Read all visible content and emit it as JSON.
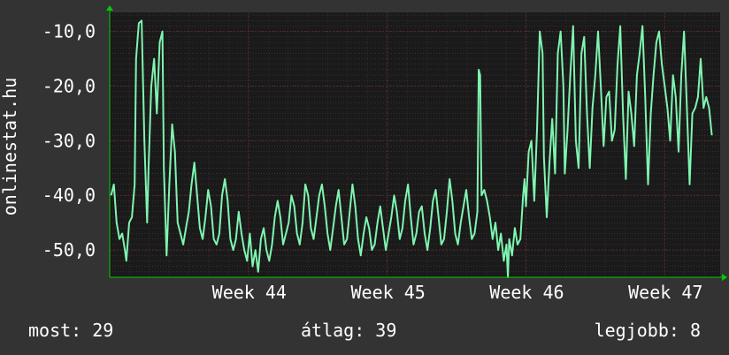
{
  "chart_data": {
    "type": "line",
    "ylabel": "onlinestat.hu",
    "y_tick_labels": [
      "-10,0",
      "-20,0",
      "-30,0",
      "-40,0",
      "-50,0"
    ],
    "y_ticks": [
      -10,
      -20,
      -30,
      -40,
      -50
    ],
    "ylim": [
      -55,
      -6.5
    ],
    "x_tick_labels": [
      "Week 44",
      "Week 45",
      "Week 46",
      "Week 47"
    ],
    "x_ticks": [
      44,
      45,
      46,
      47
    ],
    "xlim": [
      43.0,
      47.4
    ],
    "grid": true,
    "colors": {
      "line": "#7ff5b0",
      "background": "#333333",
      "plot": "#1a1a1a",
      "grid": "#4a4a4a",
      "grid_minor": "#5a2a2a",
      "axis": "#00cc00"
    },
    "series": [
      {
        "points": [
          [
            43.01,
            -40
          ],
          [
            43.03,
            -38
          ],
          [
            43.05,
            -45
          ],
          [
            43.07,
            -48
          ],
          [
            43.09,
            -47
          ],
          [
            43.11,
            -50
          ],
          [
            43.12,
            -52
          ],
          [
            43.14,
            -45
          ],
          [
            43.16,
            -44
          ],
          [
            43.18,
            -38
          ],
          [
            43.19,
            -15
          ],
          [
            43.21,
            -8.5
          ],
          [
            43.23,
            -8
          ],
          [
            43.25,
            -30
          ],
          [
            43.27,
            -45
          ],
          [
            43.28,
            -35
          ],
          [
            43.3,
            -20
          ],
          [
            43.32,
            -15
          ],
          [
            43.34,
            -25
          ],
          [
            43.36,
            -12
          ],
          [
            43.38,
            -10
          ],
          [
            43.39,
            -35
          ],
          [
            43.41,
            -51
          ],
          [
            43.43,
            -38
          ],
          [
            43.45,
            -27
          ],
          [
            43.47,
            -32
          ],
          [
            43.49,
            -45
          ],
          [
            43.51,
            -47
          ],
          [
            43.53,
            -49
          ],
          [
            43.55,
            -46
          ],
          [
            43.57,
            -43
          ],
          [
            43.59,
            -38
          ],
          [
            43.61,
            -34
          ],
          [
            43.63,
            -40
          ],
          [
            43.65,
            -46
          ],
          [
            43.67,
            -48
          ],
          [
            43.69,
            -44
          ],
          [
            43.71,
            -39
          ],
          [
            43.73,
            -42
          ],
          [
            43.75,
            -48
          ],
          [
            43.77,
            -49
          ],
          [
            43.79,
            -47
          ],
          [
            43.81,
            -40
          ],
          [
            43.83,
            -37
          ],
          [
            43.85,
            -41
          ],
          [
            43.87,
            -48
          ],
          [
            43.89,
            -50
          ],
          [
            43.91,
            -48
          ],
          [
            43.93,
            -43
          ],
          [
            43.95,
            -47
          ],
          [
            43.97,
            -50
          ],
          [
            43.99,
            -52
          ],
          [
            44.01,
            -47
          ],
          [
            44.03,
            -53
          ],
          [
            44.05,
            -50
          ],
          [
            44.07,
            -54
          ],
          [
            44.09,
            -48
          ],
          [
            44.11,
            -46
          ],
          [
            44.13,
            -50
          ],
          [
            44.15,
            -52
          ],
          [
            44.17,
            -49
          ],
          [
            44.19,
            -44
          ],
          [
            44.21,
            -41
          ],
          [
            44.23,
            -44
          ],
          [
            44.25,
            -49
          ],
          [
            44.27,
            -47
          ],
          [
            44.29,
            -45
          ],
          [
            44.31,
            -40
          ],
          [
            44.33,
            -42
          ],
          [
            44.35,
            -47
          ],
          [
            44.37,
            -49
          ],
          [
            44.39,
            -45
          ],
          [
            44.41,
            -38
          ],
          [
            44.43,
            -40
          ],
          [
            44.45,
            -46
          ],
          [
            44.47,
            -48
          ],
          [
            44.49,
            -44
          ],
          [
            44.51,
            -40
          ],
          [
            44.53,
            -38
          ],
          [
            44.55,
            -42
          ],
          [
            44.57,
            -47
          ],
          [
            44.59,
            -50
          ],
          [
            44.61,
            -46
          ],
          [
            44.63,
            -42
          ],
          [
            44.65,
            -39
          ],
          [
            44.67,
            -44
          ],
          [
            44.69,
            -49
          ],
          [
            44.71,
            -48
          ],
          [
            44.73,
            -43
          ],
          [
            44.75,
            -38
          ],
          [
            44.77,
            -42
          ],
          [
            44.79,
            -48
          ],
          [
            44.81,
            -51
          ],
          [
            44.83,
            -47
          ],
          [
            44.85,
            -44
          ],
          [
            44.87,
            -46
          ],
          [
            44.89,
            -50
          ],
          [
            44.91,
            -49
          ],
          [
            44.93,
            -45
          ],
          [
            44.95,
            -42
          ],
          [
            44.97,
            -46
          ],
          [
            44.99,
            -50
          ],
          [
            45.01,
            -47
          ],
          [
            45.03,
            -44
          ],
          [
            45.05,
            -40
          ],
          [
            45.07,
            -43
          ],
          [
            45.09,
            -48
          ],
          [
            45.11,
            -46
          ],
          [
            45.13,
            -41
          ],
          [
            45.15,
            -38
          ],
          [
            45.17,
            -44
          ],
          [
            45.19,
            -49
          ],
          [
            45.21,
            -47
          ],
          [
            45.23,
            -43
          ],
          [
            45.25,
            -42
          ],
          [
            45.27,
            -47
          ],
          [
            45.29,
            -50
          ],
          [
            45.31,
            -46
          ],
          [
            45.33,
            -41
          ],
          [
            45.35,
            -39
          ],
          [
            45.37,
            -44
          ],
          [
            45.39,
            -49
          ],
          [
            45.41,
            -48
          ],
          [
            45.43,
            -43
          ],
          [
            45.45,
            -37
          ],
          [
            45.47,
            -41
          ],
          [
            45.49,
            -47
          ],
          [
            45.51,
            -49
          ],
          [
            45.53,
            -45
          ],
          [
            45.55,
            -42
          ],
          [
            45.57,
            -39
          ],
          [
            45.59,
            -44
          ],
          [
            45.61,
            -48
          ],
          [
            45.63,
            -47
          ],
          [
            45.65,
            -43
          ],
          [
            45.66,
            -17
          ],
          [
            45.67,
            -18
          ],
          [
            45.68,
            -40
          ],
          [
            45.7,
            -39
          ],
          [
            45.72,
            -41
          ],
          [
            45.74,
            -44
          ],
          [
            45.76,
            -48
          ],
          [
            45.78,
            -45
          ],
          [
            45.8,
            -50
          ],
          [
            45.82,
            -47
          ],
          [
            45.84,
            -52
          ],
          [
            45.86,
            -49
          ],
          [
            45.87,
            -55
          ],
          [
            45.88,
            -48
          ],
          [
            45.9,
            -51
          ],
          [
            45.92,
            -46
          ],
          [
            45.94,
            -49
          ],
          [
            45.96,
            -48
          ],
          [
            45.98,
            -40
          ],
          [
            45.99,
            -37
          ],
          [
            46.0,
            -42
          ],
          [
            46.02,
            -32
          ],
          [
            46.04,
            -30
          ],
          [
            46.06,
            -41
          ],
          [
            46.08,
            -28
          ],
          [
            46.1,
            -10
          ],
          [
            46.12,
            -14
          ],
          [
            46.13,
            -33
          ],
          [
            46.15,
            -44
          ],
          [
            46.17,
            -34
          ],
          [
            46.19,
            -26
          ],
          [
            46.21,
            -36
          ],
          [
            46.23,
            -14
          ],
          [
            46.25,
            -10
          ],
          [
            46.27,
            -20
          ],
          [
            46.28,
            -36
          ],
          [
            46.3,
            -28
          ],
          [
            46.32,
            -18
          ],
          [
            46.34,
            -9
          ],
          [
            46.36,
            -30
          ],
          [
            46.38,
            -35
          ],
          [
            46.4,
            -14
          ],
          [
            46.42,
            -11
          ],
          [
            46.44,
            -25
          ],
          [
            46.46,
            -35
          ],
          [
            46.48,
            -24
          ],
          [
            46.5,
            -18
          ],
          [
            46.52,
            -10
          ],
          [
            46.54,
            -20
          ],
          [
            46.56,
            -31
          ],
          [
            46.58,
            -22
          ],
          [
            46.6,
            -21
          ],
          [
            46.62,
            -30
          ],
          [
            46.64,
            -28
          ],
          [
            46.66,
            -16
          ],
          [
            46.68,
            -9
          ],
          [
            46.7,
            -25
          ],
          [
            46.72,
            -37
          ],
          [
            46.74,
            -21
          ],
          [
            46.76,
            -25
          ],
          [
            46.78,
            -31
          ],
          [
            46.8,
            -18
          ],
          [
            46.82,
            -14
          ],
          [
            46.84,
            -9
          ],
          [
            46.86,
            -22
          ],
          [
            46.88,
            -38
          ],
          [
            46.9,
            -25
          ],
          [
            46.92,
            -18
          ],
          [
            46.94,
            -12
          ],
          [
            46.96,
            -10
          ],
          [
            46.98,
            -16
          ],
          [
            47.0,
            -20
          ],
          [
            47.02,
            -24
          ],
          [
            47.04,
            -30
          ],
          [
            47.06,
            -18
          ],
          [
            47.08,
            -22
          ],
          [
            47.1,
            -32
          ],
          [
            47.12,
            -18
          ],
          [
            47.14,
            -10
          ],
          [
            47.16,
            -24
          ],
          [
            47.18,
            -38
          ],
          [
            47.2,
            -25
          ],
          [
            47.22,
            -24
          ],
          [
            47.24,
            -22
          ],
          [
            47.26,
            -15
          ],
          [
            47.28,
            -24
          ],
          [
            47.3,
            -22
          ],
          [
            47.32,
            -24
          ],
          [
            47.34,
            -29
          ]
        ]
      }
    ]
  },
  "stats": {
    "now": "most: 29",
    "avg": "átlag: 39",
    "best": "legjobb: 8"
  }
}
